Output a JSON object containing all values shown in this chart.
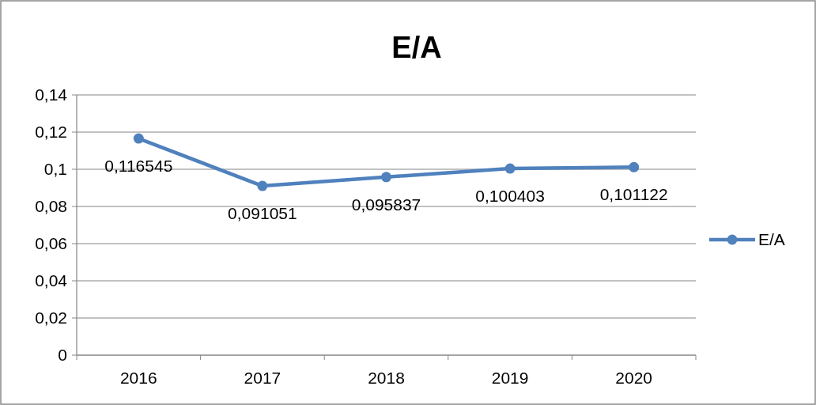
{
  "chart_data": {
    "type": "line",
    "title": "E/A",
    "categories": [
      "2016",
      "2017",
      "2018",
      "2019",
      "2020"
    ],
    "series": [
      {
        "name": "E/A",
        "color": "#4f81bd",
        "values": [
          0.116545,
          0.091051,
          0.095837,
          0.100403,
          0.101122
        ],
        "value_labels": [
          "0,116545",
          "0,091051",
          "0,095837",
          "0,100403",
          "0,101122"
        ]
      }
    ],
    "ylim": [
      0,
      0.14
    ],
    "yticks": [
      {
        "value": 0,
        "label": "0"
      },
      {
        "value": 0.02,
        "label": "0,02"
      },
      {
        "value": 0.04,
        "label": "0,04"
      },
      {
        "value": 0.06,
        "label": "0,06"
      },
      {
        "value": 0.08,
        "label": "0,08"
      },
      {
        "value": 0.1,
        "label": "0,1"
      },
      {
        "value": 0.12,
        "label": "0,12"
      },
      {
        "value": 0.14,
        "label": "0,14"
      }
    ],
    "grid": "y",
    "legend": "right",
    "marker": "circle",
    "line_style": "solid"
  }
}
